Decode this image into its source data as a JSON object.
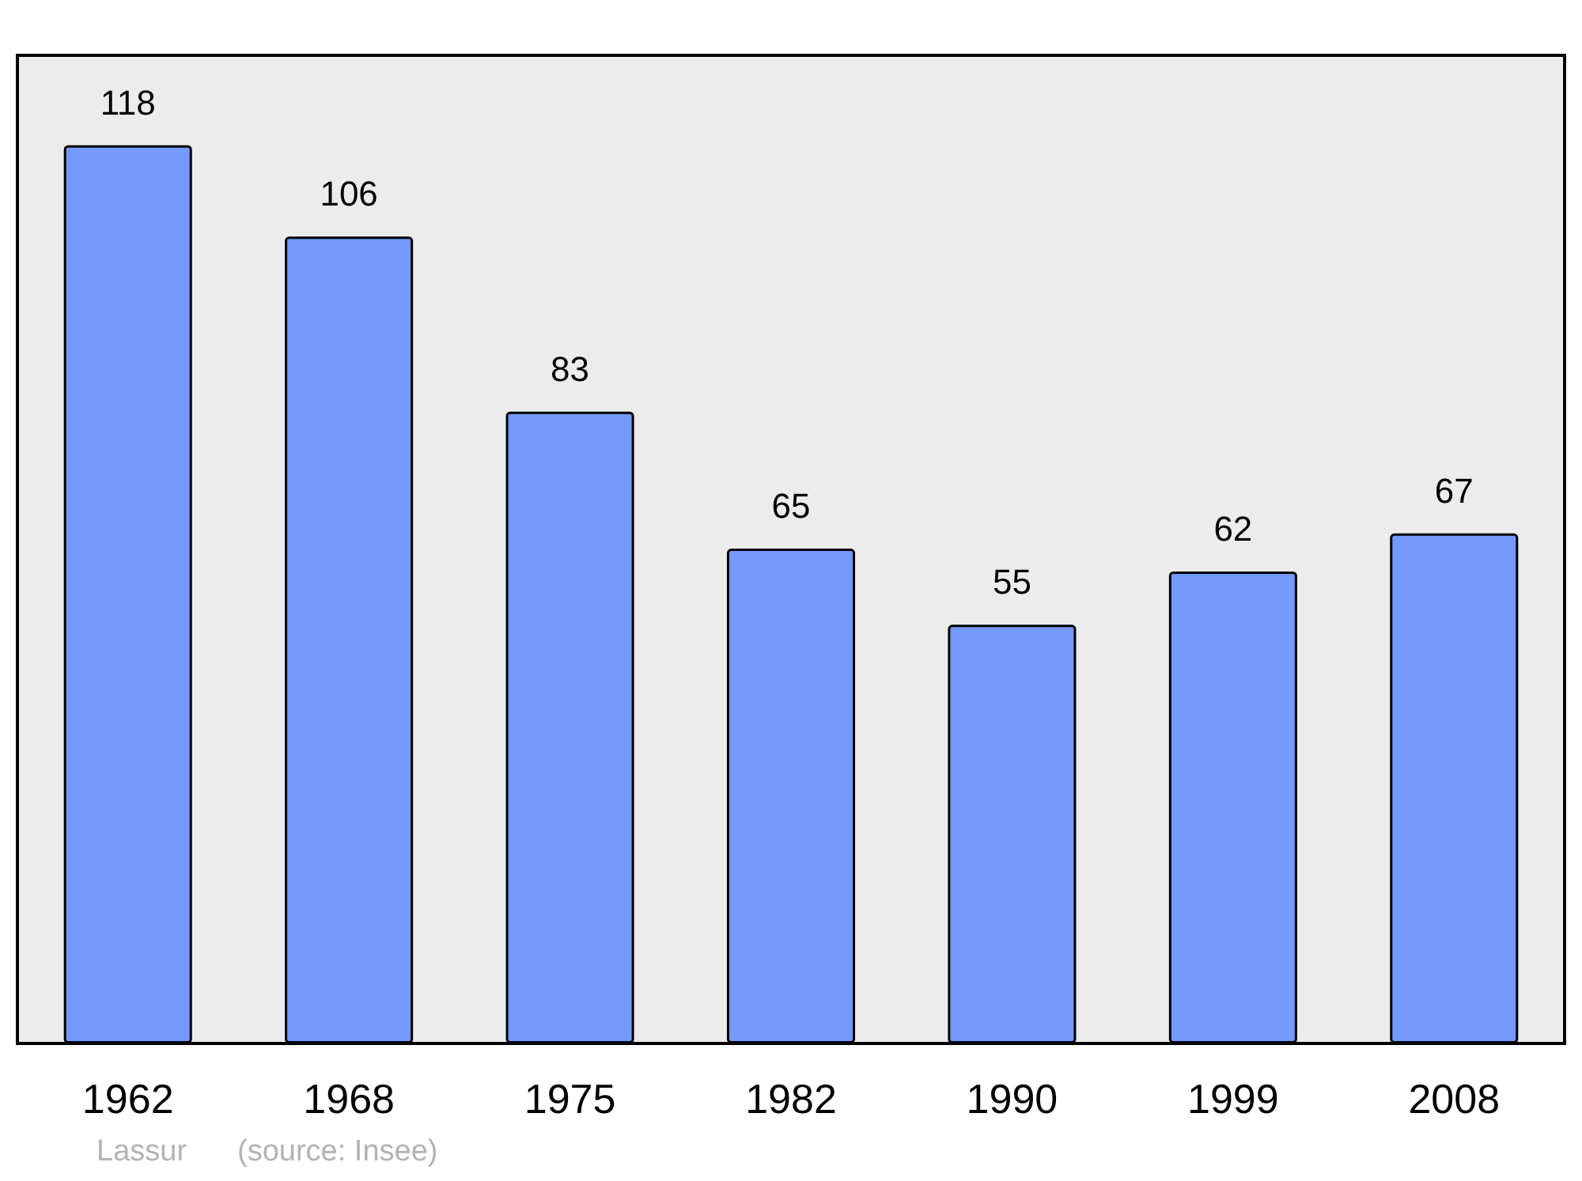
{
  "chart_data": {
    "type": "bar",
    "categories": [
      "1962",
      "1968",
      "1975",
      "1982",
      "1990",
      "1999",
      "2008"
    ],
    "values": [
      118,
      106,
      83,
      65,
      55,
      62,
      67
    ],
    "color": "#7499ff",
    "data_labels": true,
    "grid": false,
    "annotations": [
      "Lassur",
      "(source: Insee)"
    ]
  }
}
